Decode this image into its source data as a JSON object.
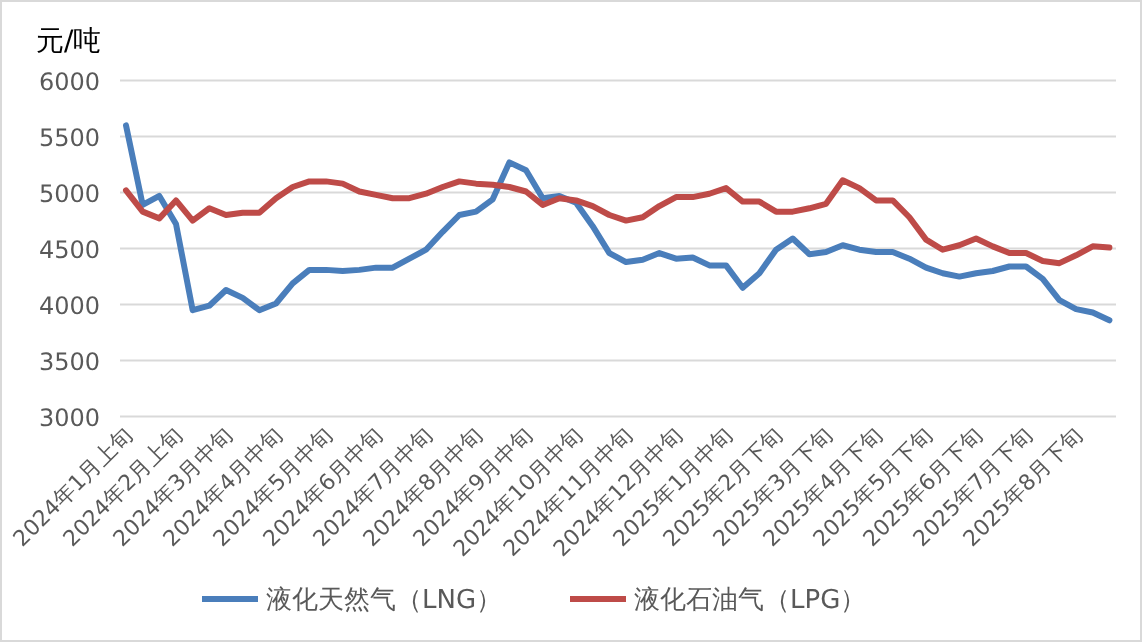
{
  "chart_data": {
    "type": "line",
    "ylabel": "元/吨",
    "ylim": [
      3000,
      6000
    ],
    "yticks": [
      3000,
      3500,
      4000,
      4500,
      5000,
      5500,
      6000
    ],
    "grid": "y",
    "legend": "bottom",
    "categories": [
      "2024年1月上旬",
      null,
      null,
      "2024年2月上旬",
      null,
      null,
      "2024年3月中旬",
      null,
      null,
      "2024年4月中旬",
      null,
      null,
      "2024年5月中旬",
      null,
      null,
      "2024年6月中旬",
      null,
      null,
      "2024年7月中旬",
      null,
      null,
      "2024年8月中旬",
      null,
      null,
      "2024年9月中旬",
      null,
      null,
      "2024年10月中旬",
      null,
      null,
      "2024年11月中旬",
      null,
      null,
      "2024年12月中旬",
      null,
      null,
      "2025年1月中旬",
      null,
      null,
      "2025年2月下旬",
      null,
      null,
      "2025年3月下旬",
      null,
      null,
      "2025年4月下旬",
      null,
      null,
      "2025年5月下旬",
      null,
      null,
      "2025年6月下旬",
      null,
      null,
      "2025年7月下旬",
      null,
      null,
      "2025年8月下旬",
      null,
      null
    ],
    "series": [
      {
        "name": "液化天然气（LNG）",
        "color": "#4a7ebb",
        "values": [
          5600,
          4890,
          4970,
          4720,
          3950,
          3990,
          4130,
          4060,
          3950,
          4010,
          4190,
          4310,
          4310,
          4300,
          4310,
          4330,
          4330,
          4410,
          4490,
          4650,
          4800,
          4830,
          4940,
          5270,
          5200,
          4950,
          4970,
          4910,
          4700,
          4460,
          4380,
          4400,
          4460,
          4410,
          4420,
          4350,
          4350,
          4150,
          4280,
          4490,
          4590,
          4450,
          4470,
          4530,
          4490,
          4470,
          4470,
          4410,
          4330,
          4280,
          4250,
          4280,
          4300,
          4340,
          4340,
          4230,
          4040,
          3960,
          3930,
          3860
        ]
      },
      {
        "name": "液化石油气（LPG）",
        "color": "#be4b48",
        "values": [
          5020,
          4830,
          4770,
          4930,
          4750,
          4860,
          4800,
          4820,
          4820,
          4950,
          5050,
          5100,
          5100,
          5080,
          5010,
          4980,
          4950,
          4950,
          4990,
          5050,
          5100,
          5080,
          5070,
          5050,
          5010,
          4890,
          4950,
          4930,
          4880,
          4800,
          4750,
          4780,
          4880,
          4960,
          4960,
          4990,
          5040,
          4920,
          4920,
          4830,
          4830,
          4860,
          4900,
          5110,
          5040,
          4930,
          4930,
          4780,
          4580,
          4490,
          4530,
          4590,
          4520,
          4460,
          4460,
          4390,
          4370,
          4440,
          4520,
          4510
        ]
      }
    ]
  }
}
